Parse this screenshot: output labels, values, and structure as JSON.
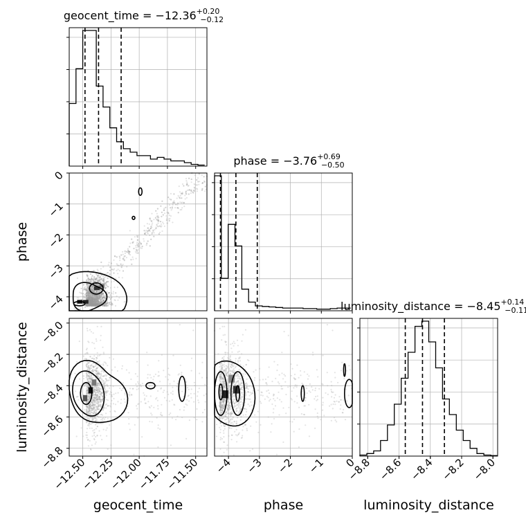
{
  "chart_data": {
    "type": "scatter",
    "kind": "corner-plot",
    "parameters": [
      "geocent_time",
      "phase",
      "luminosity_distance"
    ],
    "axis_labels": {
      "geocent_time": "geocent_time",
      "phase": "phase",
      "luminosity_distance": "luminosity_distance"
    },
    "ranges": {
      "geocent_time": [
        -12.62,
        -11.4
      ],
      "phase": [
        -4.45,
        0
      ],
      "luminosity_distance": [
        -8.85,
        -7.97
      ]
    },
    "ticks": {
      "geocent_time": [
        -12.5,
        -12.25,
        -12.0,
        -11.75,
        -11.5
      ],
      "phase": [
        -4,
        -3,
        -2,
        -1,
        0
      ],
      "luminosity_distance": [
        -8.8,
        -8.6,
        -8.4,
        -8.2,
        -8.0
      ]
    },
    "tick_labels": {
      "geocent_time": [
        "−12.50",
        "−12.25",
        "−12.00",
        "−11.75",
        "−11.50"
      ],
      "phase": [
        "−4",
        "−3",
        "−2",
        "−1",
        "0"
      ],
      "luminosity_distance": [
        "−8.8",
        "−8.6",
        "−8.4",
        "−8.2",
        "−8.0"
      ]
    },
    "summaries": [
      {
        "param": "geocent_time",
        "prefix": "geocent_time = ",
        "median": "−12.36",
        "plus": "+0.20",
        "minus": "−0.12",
        "quantiles": [
          -12.48,
          -12.36,
          -12.16
        ]
      },
      {
        "param": "phase",
        "prefix": "phase = ",
        "median": "−3.76",
        "plus": "+0.69",
        "minus": "−0.50",
        "quantiles": [
          -4.26,
          -3.76,
          -3.07
        ]
      },
      {
        "param": "luminosity_distance",
        "prefix": "luminosity_distance = ",
        "median": "−8.45",
        "plus": "+0.14",
        "minus": "−0.11",
        "quantiles": [
          -8.56,
          -8.45,
          -8.31
        ]
      }
    ],
    "histograms": {
      "geocent_time": {
        "bin_edges": [
          -12.62,
          -12.56,
          -12.5,
          -12.44,
          -12.38,
          -12.32,
          -12.26,
          -12.2,
          -12.14,
          -12.08,
          -12.02,
          -11.96,
          -11.9,
          -11.84,
          -11.78,
          -11.72,
          -11.66,
          -11.6,
          -11.54,
          -11.48,
          -11.42
        ],
        "counts": [
          18,
          28,
          39,
          39,
          23,
          17,
          11,
          7,
          5,
          4,
          3,
          3,
          2,
          2.5,
          2,
          1.5,
          1.5,
          1,
          0.5,
          0.3
        ]
      },
      "phase": {
        "bin_edges": [
          -4.45,
          -4.23,
          -4.01,
          -3.79,
          -3.57,
          -3.35,
          -3.13,
          -2.91,
          -2.69,
          -2.47,
          -2.25,
          -2.03,
          -1.81,
          -1.59,
          -1.37,
          -1.15,
          -0.93,
          -0.71,
          -0.49,
          -0.27,
          -0.05
        ],
        "counts": [
          25,
          6,
          16,
          12,
          4,
          1.6,
          0.9,
          0.8,
          0.7,
          0.6,
          0.5,
          0.5,
          0.5,
          0.4,
          0.4,
          0.3,
          0.3,
          0.4,
          0.5,
          0.5
        ]
      },
      "luminosity_distance": {
        "bin_edges": [
          -8.85,
          -8.806,
          -8.762,
          -8.718,
          -8.674,
          -8.63,
          -8.586,
          -8.542,
          -8.498,
          -8.454,
          -8.41,
          -8.366,
          -8.322,
          -8.278,
          -8.234,
          -8.19,
          -8.146,
          -8.102,
          -8.058,
          -8.014,
          -7.97
        ],
        "counts": [
          0.2,
          0.5,
          1,
          3,
          6,
          10,
          15,
          20,
          25,
          26,
          22,
          17,
          11,
          8,
          5,
          3,
          1.5,
          0.5,
          0.2,
          0.1
        ]
      }
    },
    "scatter_panels": [
      {
        "x": "geocent_time",
        "y": "phase",
        "samples": "grey points along diagonal band from (-12.6,-4.4) to (-11.5,-0.1)"
      },
      {
        "x": "geocent_time",
        "y": "luminosity_distance",
        "samples": "grey points concentrated near (-12.45,-8.45)"
      },
      {
        "x": "phase",
        "y": "luminosity_distance",
        "samples": "grey points concentrated near (-3.9,-8.45)"
      }
    ],
    "grid": true,
    "colors": {
      "lines": "#000000",
      "points": "#9a9a9a",
      "grid": "#b0b0b0"
    }
  }
}
